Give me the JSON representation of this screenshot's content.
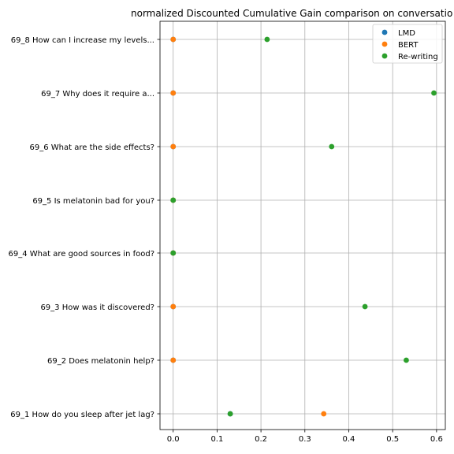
{
  "chart_data": {
    "type": "scatter",
    "title": "normalized Discounted Cumulative Gain comparison on conversatio",
    "xlabel": "",
    "ylabel": "",
    "xlim": [
      -0.03,
      0.62
    ],
    "x_ticks": [
      0.0,
      0.1,
      0.2,
      0.3,
      0.4,
      0.5,
      0.6
    ],
    "x_tick_labels": [
      "0.0",
      "0.1",
      "0.2",
      "0.3",
      "0.4",
      "0.5",
      "0.6"
    ],
    "grid": true,
    "legend_position": "top-right",
    "categories": [
      "69_1 How do you sleep after jet lag?",
      "69_2 Does melatonin help?",
      "69_3 How was it discovered?",
      "69_4 What are good sources in food?",
      "69_5 Is melatonin bad for you?",
      "69_6 What are the side effects?",
      "69_7 Why does it require a...",
      "69_8 How can I increase my levels..."
    ],
    "series": [
      {
        "name": "LMD",
        "color": "#1f77b4",
        "values": [
          0.13,
          0.0,
          0.0,
          0.0,
          0.0,
          0.0,
          0.0,
          0.0
        ]
      },
      {
        "name": "BERT",
        "color": "#ff7f0e",
        "values": [
          0.343,
          0.0,
          0.0,
          0.0,
          0.0,
          0.0,
          0.0,
          0.0
        ]
      },
      {
        "name": "Re-writing",
        "color": "#2ca02c",
        "values": [
          0.13,
          0.531,
          0.437,
          0.0,
          0.0,
          0.361,
          0.594,
          0.214
        ]
      }
    ]
  }
}
